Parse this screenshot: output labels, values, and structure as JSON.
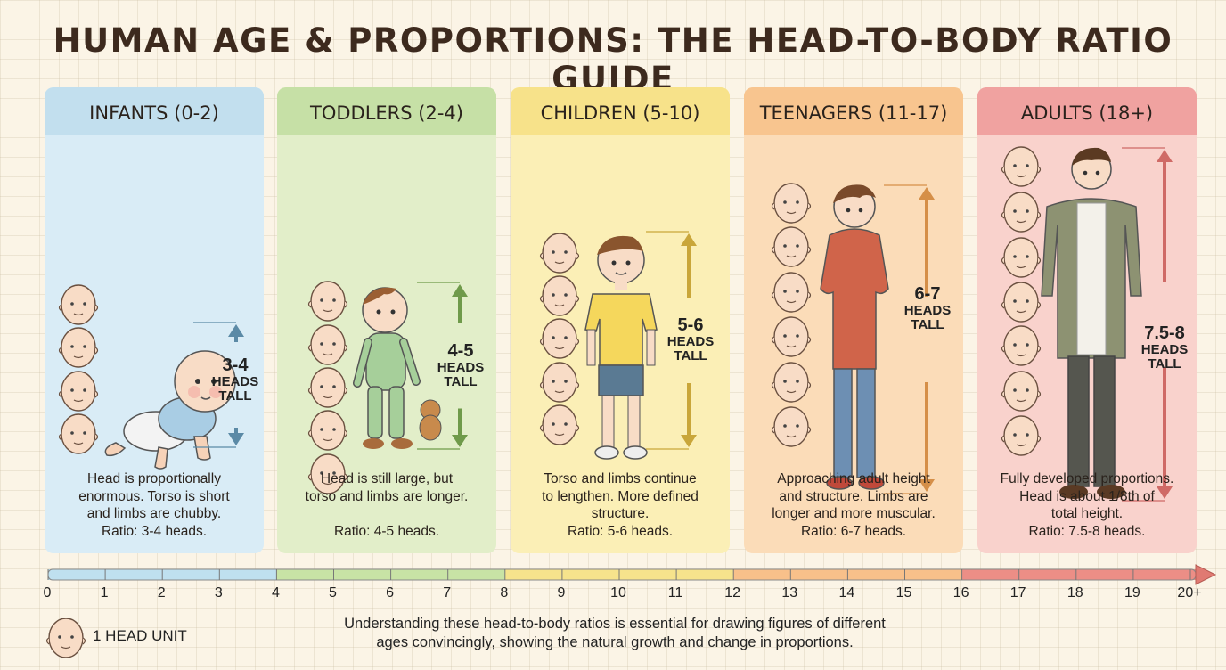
{
  "title": "HUMAN AGE & PROPORTIONS: THE HEAD-TO-BODY RATIO GUIDE",
  "panels": [
    {
      "header": "INFANTS (0-2)",
      "ratio_big": "3-4",
      "ratio_small1": "HEADS",
      "ratio_small2": "TALL",
      "desc": [
        "Head is proportionally",
        "enormous. Torso is short",
        "and limbs are chubby."
      ],
      "desc_ratio": "Ratio: 3-4 heads.",
      "head_color": "#c2dfee",
      "body_color": "#d9ecf6",
      "accent": "#5b8aa6"
    },
    {
      "header": "TODDLERS (2-4)",
      "ratio_big": "4-5",
      "ratio_small1": "HEADS",
      "ratio_small2": "TALL",
      "desc": [
        "Head is still large, but",
        "torso and limbs are longer."
      ],
      "desc_ratio": "Ratio: 4-5 heads.",
      "head_color": "#c6e0a6",
      "body_color": "#e2eec9",
      "accent": "#6f9a4a"
    },
    {
      "header": "CHILDREN (5-10)",
      "ratio_big": "5-6",
      "ratio_small1": "HEADS",
      "ratio_small2": "TALL",
      "desc": [
        "Torso and limbs continue",
        "to lengthen. More defined",
        "structure."
      ],
      "desc_ratio": "Ratio: 5-6 heads.",
      "head_color": "#f7e28a",
      "body_color": "#fbefb6",
      "accent": "#c9a63a"
    },
    {
      "header": "TEENAGERS (11-17)",
      "ratio_big": "6-7",
      "ratio_small1": "HEADS",
      "ratio_small2": "TALL",
      "desc": [
        "Approaching adult height",
        "and structure. Limbs are",
        "longer and more muscular."
      ],
      "desc_ratio": "Ratio: 6-7 heads.",
      "head_color": "#f8c58f",
      "body_color": "#fbdcb8",
      "accent": "#d58f48"
    },
    {
      "header": "ADULTS (18+)",
      "ratio_big": "7.5-8",
      "ratio_small1": "HEADS",
      "ratio_small2": "TALL",
      "desc": [
        "Fully developed proportions.",
        "Head is about 1/8th of",
        "total height."
      ],
      "desc_ratio": "Ratio: 7.5-8 heads.",
      "head_color": "#f0a2a0",
      "body_color": "#f9d2cc",
      "accent": "#cf6a66"
    }
  ],
  "timeline": {
    "ticks": [
      "0",
      "1",
      "2",
      "3",
      "4",
      "5",
      "6",
      "7",
      "8",
      "9",
      "10",
      "11",
      "12",
      "13",
      "14",
      "15",
      "16",
      "17",
      "18",
      "19",
      "20+"
    ],
    "segment_colors": [
      "#bfe0ef",
      "#c8e3a5",
      "#f6e38c",
      "#f8c08a",
      "#ec8e86"
    ]
  },
  "legend": {
    "label": "1 HEAD UNIT"
  },
  "footer": [
    "Understanding these head-to-body ratios is essential for drawing figures of different",
    "ages convincingly, showing the natural growth and change in proportions."
  ]
}
